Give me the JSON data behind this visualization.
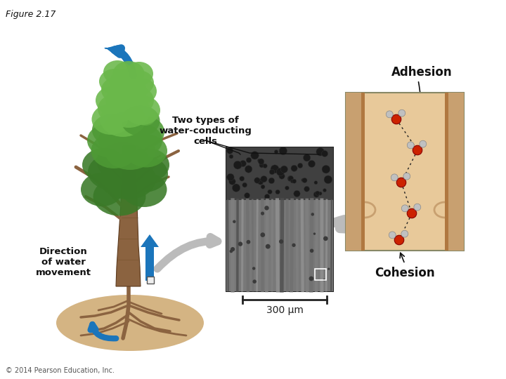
{
  "figure_label": "Figure 2.17",
  "title_adhesion": "Adhesion",
  "title_cohesion": "Cohesion",
  "label_two_types": "Two types of\nwater-conducting\ncells",
  "label_direction": "Direction\nof water\nmovement",
  "label_scale": "300 μm",
  "copyright": "© 2014 Pearson Education, Inc.",
  "bg_color": "#ffffff",
  "tree_green_dark": "#3a7a28",
  "tree_green_mid": "#4e9a35",
  "tree_green_light": "#6ab84a",
  "trunk_color": "#8B6340",
  "trunk_edge": "#5C3A1E",
  "root_bg_color": "#D4B483",
  "arrow_blue": "#1B75BB",
  "cell_bg": "#E8C99A",
  "cell_wall_color": "#C8A070",
  "cell_wall_dark": "#B07840",
  "water_red": "#CC2200",
  "water_gray": "#C0C0C0",
  "scale_color": "#222222",
  "text_color": "#111111",
  "arrow_gray": "#BBBBBB",
  "dashed_color": "#333333"
}
